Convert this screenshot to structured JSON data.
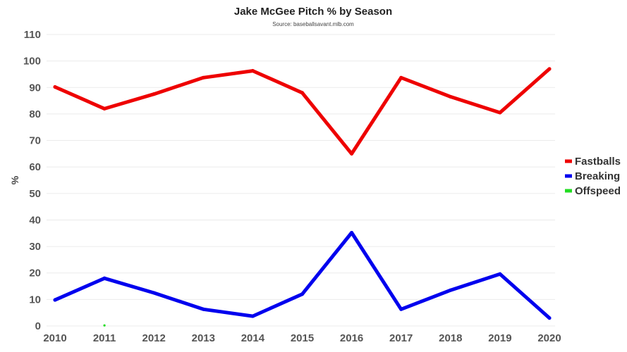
{
  "chart_data": {
    "type": "line",
    "title": "Jake McGee Pitch % by Season",
    "subtitle": "Source: baseballsavant.mlb.com",
    "ylabel": "%",
    "xlabel": "",
    "categories": [
      "2010",
      "2011",
      "2012",
      "2013",
      "2014",
      "2015",
      "2016",
      "2017",
      "2018",
      "2019",
      "2020"
    ],
    "ylim": [
      0,
      110
    ],
    "yticks": [
      0,
      10,
      20,
      30,
      40,
      50,
      60,
      70,
      80,
      90,
      100,
      110
    ],
    "grid": true,
    "legend_position": "right",
    "series": [
      {
        "name": "Fastballs",
        "color": "#ee0000",
        "values": [
          90.2,
          82.0,
          87.5,
          93.7,
          96.3,
          88.0,
          65.0,
          93.7,
          86.5,
          80.5,
          97.0
        ]
      },
      {
        "name": "Breaking",
        "color": "#0000ee",
        "values": [
          9.8,
          18.0,
          12.5,
          6.3,
          3.7,
          12.0,
          35.2,
          6.3,
          13.5,
          19.6,
          3.0
        ]
      },
      {
        "name": "Offspeed",
        "color": "#22dd22",
        "values": [
          null,
          0.2,
          null,
          null,
          null,
          null,
          null,
          null,
          null,
          null,
          null
        ]
      }
    ]
  }
}
